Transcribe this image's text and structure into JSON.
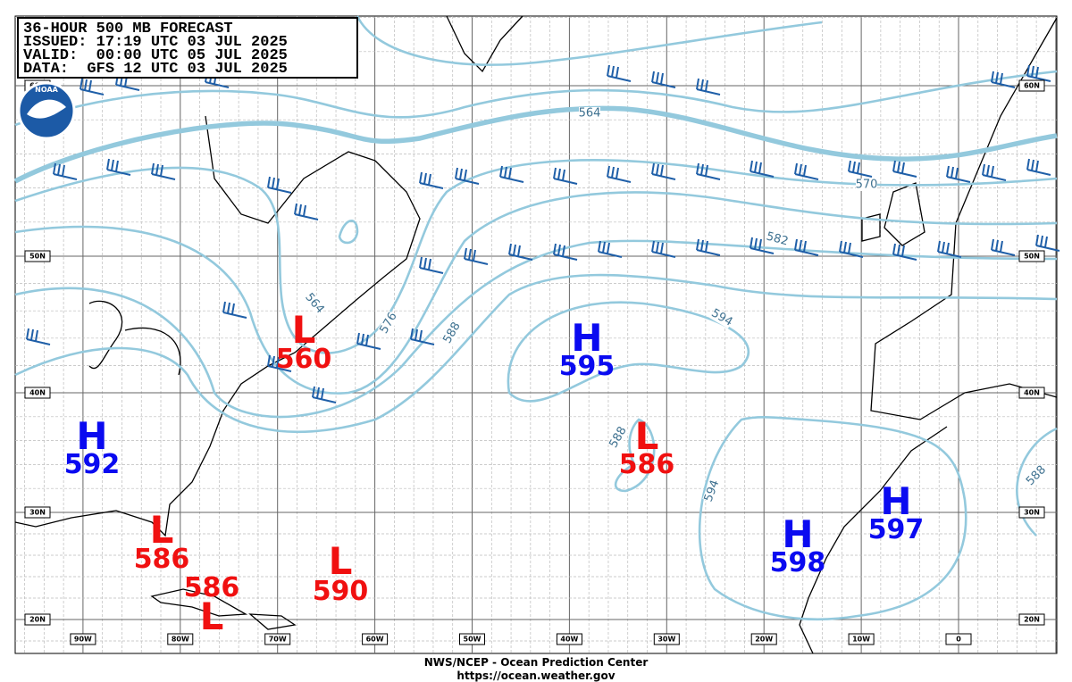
{
  "header": {
    "lines": [
      "36-HOUR 500 MB FORECAST",
      "ISSUED: 17:19 UTC 03 JUL 2025",
      "VALID:  00:00 UTC 05 JUL 2025",
      "DATA:  GFS 12 UTC 03 JUL 2025"
    ]
  },
  "logo": "NOAA",
  "latitude_labels": [
    "60N",
    "50N",
    "40N",
    "30N",
    "20N"
  ],
  "longitude_labels": [
    "90W",
    "80W",
    "70W",
    "60W",
    "50W",
    "40W",
    "30W",
    "20W",
    "10W",
    "0"
  ],
  "contour_labels": [
    564,
    564,
    576,
    588,
    594,
    582,
    570,
    588,
    594,
    588
  ],
  "pressure_centers": [
    {
      "type": "H",
      "value": 592
    },
    {
      "type": "L",
      "value": 560
    },
    {
      "type": "H",
      "value": 595
    },
    {
      "type": "L",
      "value": 586
    },
    {
      "type": "L",
      "value": 586
    },
    {
      "type": "L",
      "value": 586
    },
    {
      "type": "L",
      "value": 590
    },
    {
      "type": "H",
      "value": 598
    },
    {
      "type": "H",
      "value": 597
    }
  ],
  "footer": {
    "lines": [
      "NWS/NCEP - Ocean Prediction Center",
      "https://ocean.weather.gov"
    ]
  }
}
